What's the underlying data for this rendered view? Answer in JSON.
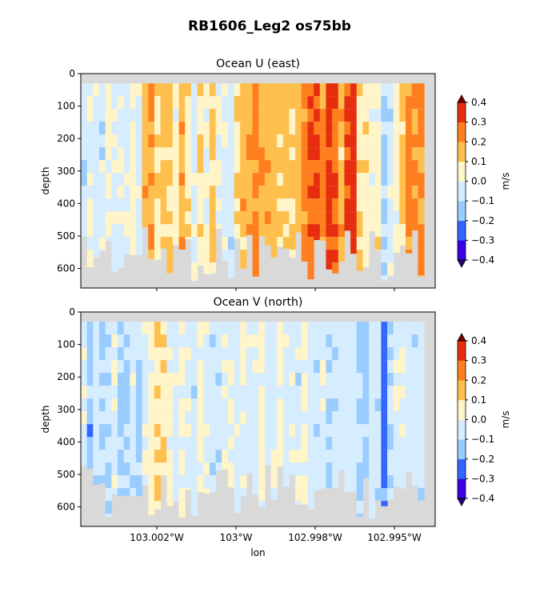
{
  "figure": {
    "suptitle": "RB1606_Leg2 os75bb"
  },
  "chart_data": [
    {
      "type": "heatmap",
      "title": "Ocean U (east)",
      "xlabel": "",
      "ylabel": "depth",
      "x_tick_labels": [],
      "y_ticks": [
        0,
        100,
        200,
        300,
        400,
        500,
        600
      ],
      "ylim": [
        660,
        0
      ],
      "colorbar": {
        "label": "m/s",
        "ticks": [
          "0.4",
          "0.3",
          "0.2",
          "0.1",
          "0.0",
          "−0.1",
          "−0.2",
          "−0.3",
          "−0.4"
        ],
        "levels": [
          -0.4,
          -0.3,
          -0.2,
          -0.1,
          0.0,
          0.1,
          0.2,
          0.3,
          0.4
        ],
        "colors": [
          "#3b00e6",
          "#3366ff",
          "#99ccff",
          "#d6ecff",
          "#fff5c8",
          "#ffbf4d",
          "#ff7f1f",
          "#e62e0f"
        ],
        "extend": "both"
      },
      "columns": [
        -0.05,
        0.02,
        -0.03,
        -0.05,
        0.03,
        -0.04,
        -0.02,
        -0.05,
        0.04,
        -0.03,
        0.18,
        0.22,
        0.08,
        0.15,
        0.12,
        0.05,
        0.18,
        0.06,
        -0.02,
        0.07,
        0.02,
        0.14,
        0.03,
        -0.04,
        -0.06,
        0.09,
        0.15,
        0.2,
        0.25,
        0.18,
        0.16,
        0.14,
        0.13,
        0.12,
        0.11,
        0.15,
        0.24,
        0.27,
        0.34,
        0.22,
        0.35,
        0.28,
        0.15,
        0.34,
        0.38,
        0.12,
        0.06,
        0.03,
        0.05,
        -0.12,
        -0.05,
        0.05,
        0.13,
        0.22,
        0.22,
        0.21
      ]
    },
    {
      "type": "heatmap",
      "title": "Ocean V (north)",
      "xlabel": "lon",
      "ylabel": "depth",
      "x_tick_labels": [
        "103.002°W",
        "103°W",
        "102.998°W",
        "102.995°W"
      ],
      "y_ticks": [
        0,
        100,
        200,
        300,
        400,
        500,
        600
      ],
      "ylim": [
        660,
        0
      ],
      "colorbar": {
        "label": "m/s",
        "ticks": [
          "0.4",
          "0.3",
          "0.2",
          "0.1",
          "0.0",
          "−0.1",
          "−0.2",
          "−0.3",
          "−0.4"
        ],
        "levels": [
          -0.4,
          -0.3,
          -0.2,
          -0.1,
          0.0,
          0.1,
          0.2,
          0.3,
          0.4
        ],
        "colors": [
          "#3b00e6",
          "#3366ff",
          "#99ccff",
          "#d6ecff",
          "#fff5c8",
          "#ffbf4d",
          "#ff7f1f",
          "#e62e0f"
        ],
        "extend": "both"
      },
      "columns": [
        -0.04,
        -0.15,
        -0.06,
        -0.12,
        -0.08,
        -0.02,
        -0.12,
        -0.14,
        -0.05,
        -0.14,
        -0.03,
        0.05,
        0.08,
        0.06,
        0.03,
        -0.04,
        0.03,
        -0.02,
        -0.05,
        0.04,
        -0.03,
        -0.05,
        -0.06,
        -0.04,
        -0.02,
        -0.05,
        0.02,
        -0.04,
        -0.03,
        0.04,
        -0.05,
        -0.03,
        0.04,
        -0.04,
        -0.03,
        -0.05,
        0.03,
        -0.04,
        -0.05,
        -0.03,
        -0.12,
        -0.06,
        -0.04,
        -0.05,
        -0.03,
        -0.14,
        -0.15,
        -0.06,
        -0.08,
        -0.25,
        -0.12,
        -0.05,
        -0.03,
        -0.04,
        -0.05,
        -0.06
      ]
    }
  ]
}
